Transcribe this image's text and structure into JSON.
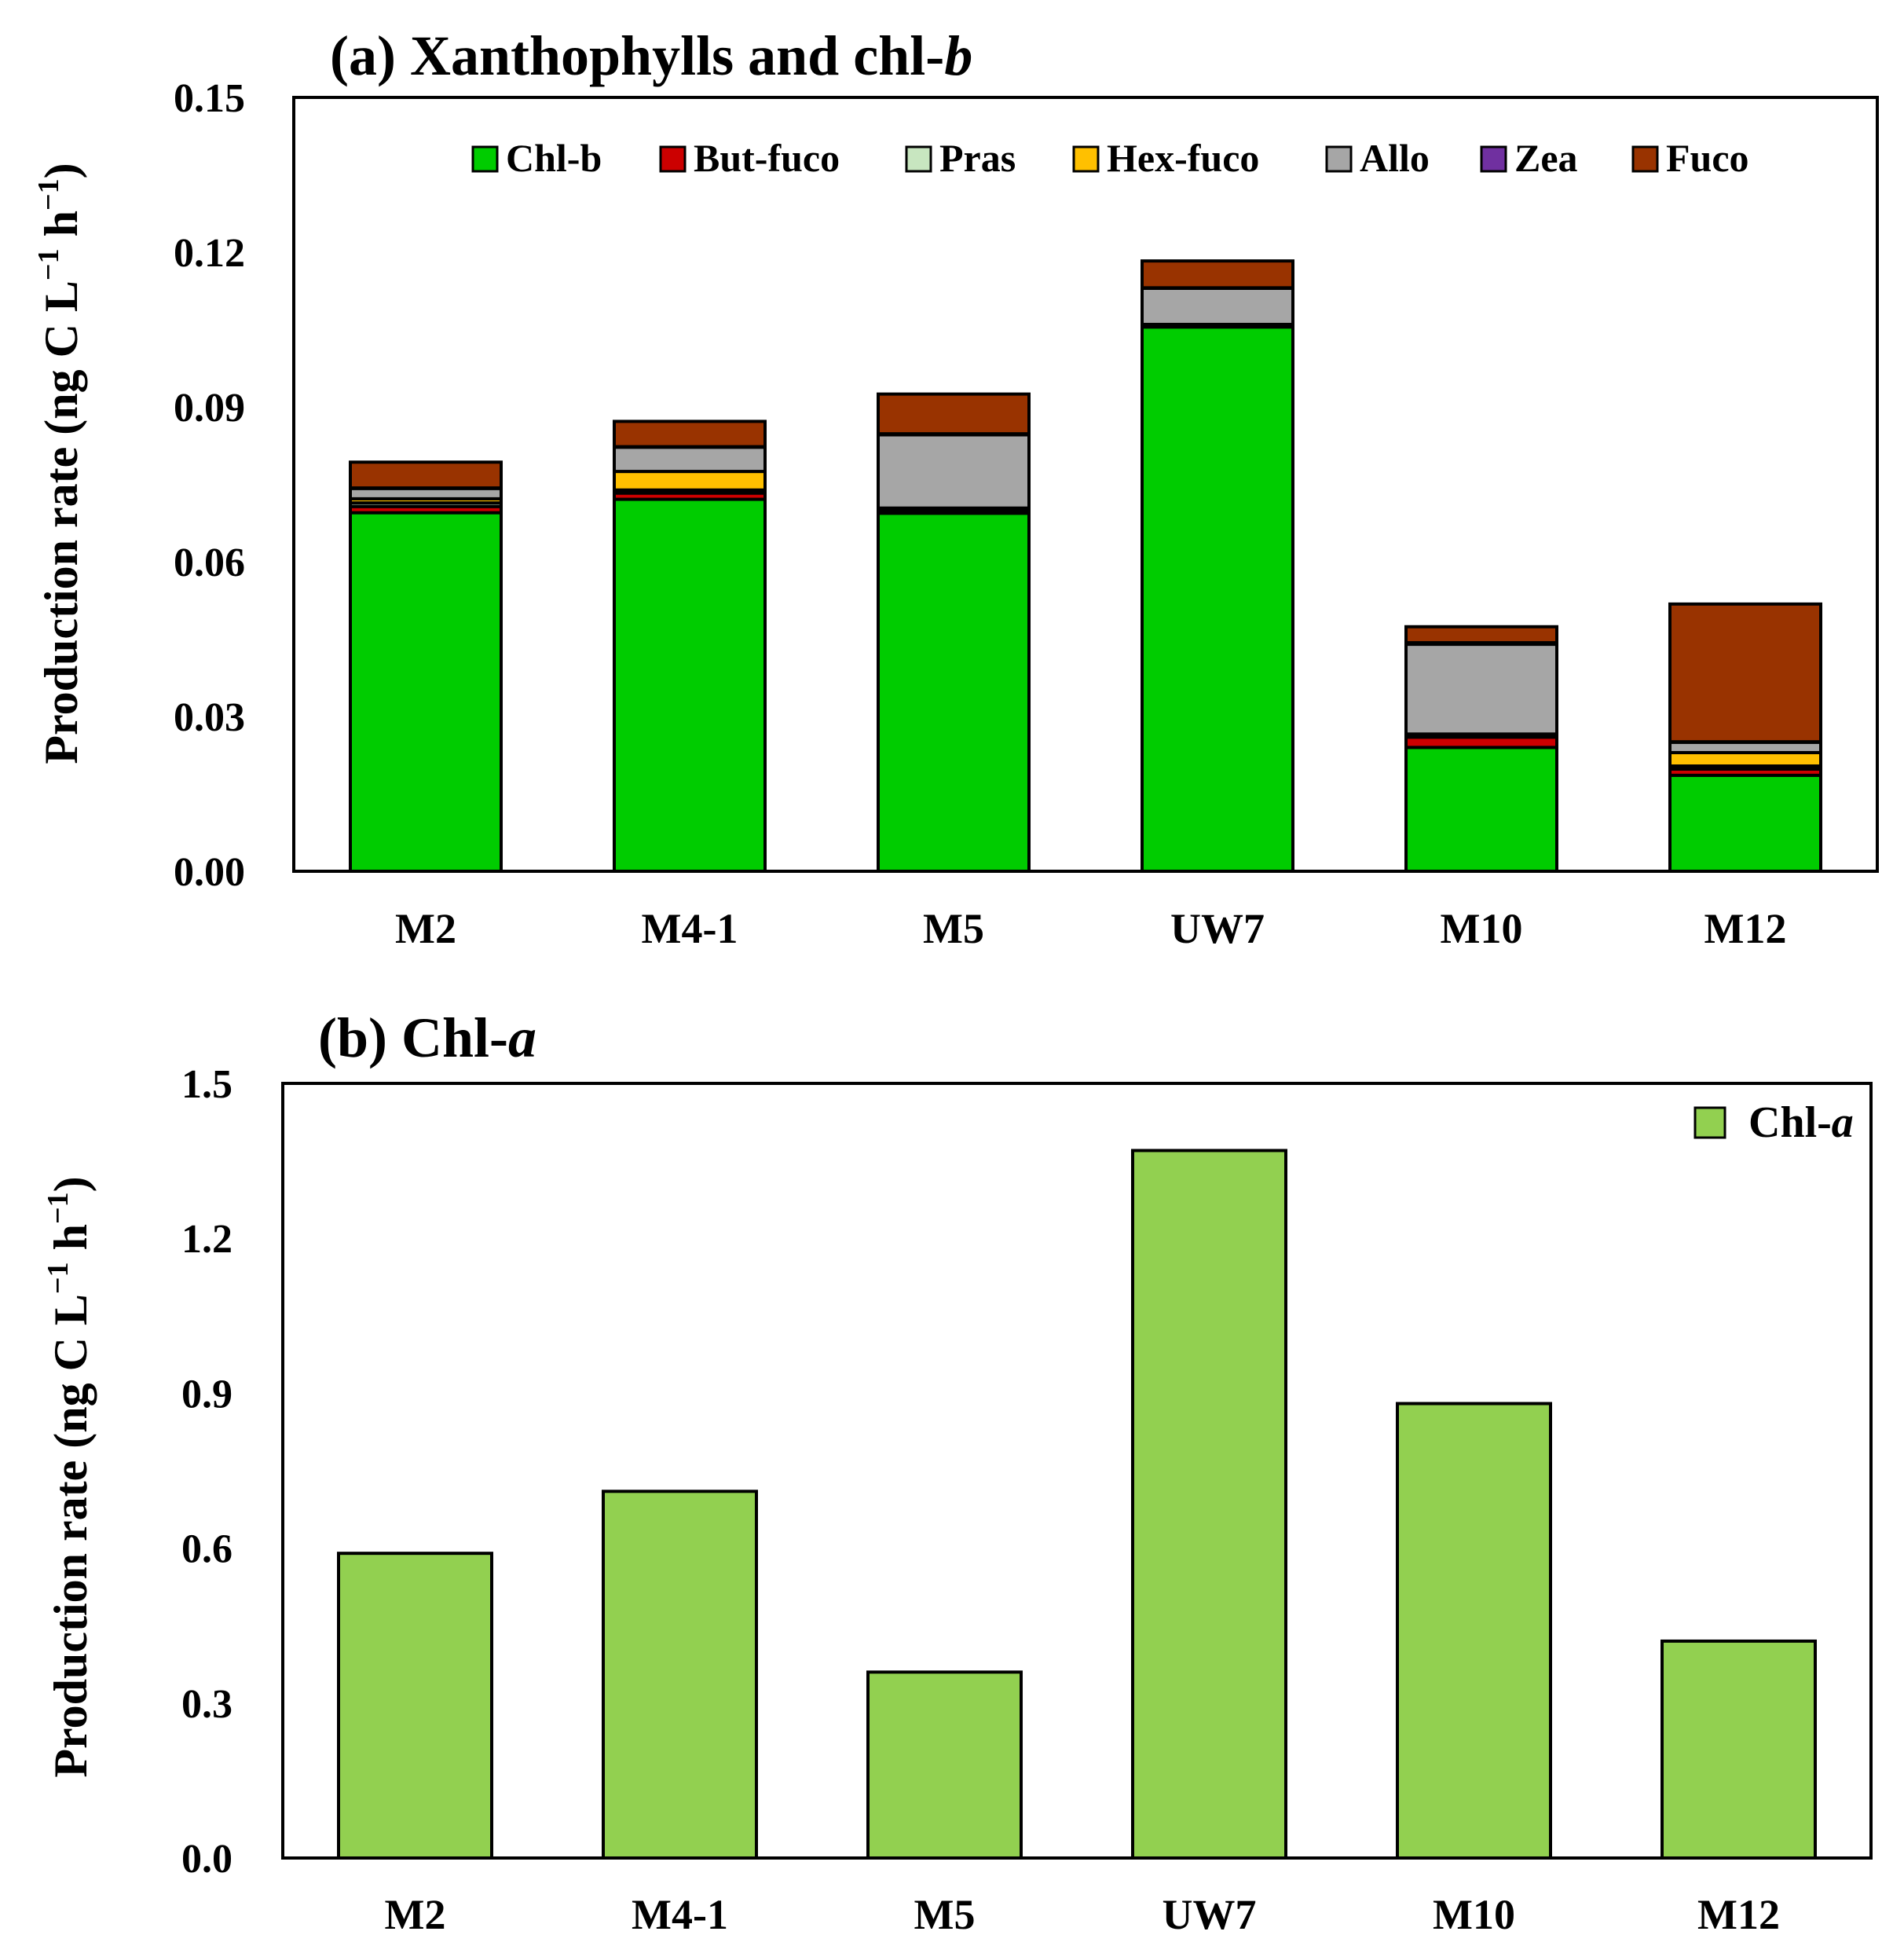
{
  "chart_data": [
    {
      "type": "bar",
      "stacked": true,
      "title": "(a) Xanthophylls and chl-",
      "title_italic": "b",
      "ylabel": "Production rate (ng C L",
      "ylabel_sup1": "−1",
      "ylabel_mid": " h",
      "ylabel_sup2": "−1",
      "ylabel_end": ")",
      "ylim": [
        0,
        0.15
      ],
      "yticks": [
        "0.00",
        "0.03",
        "0.06",
        "0.09",
        "0.12",
        "0.15"
      ],
      "categories": [
        "M2",
        "M4-1",
        "M5",
        "UW7",
        "M10",
        "M12"
      ],
      "legend_position": "top",
      "series": [
        {
          "name": "Chl-b",
          "color": "#00cc00",
          "values": [
            0.0695,
            0.0721,
            0.0694,
            0.1055,
            0.024,
            0.0186
          ]
        },
        {
          "name": "But-fuco",
          "color": "#cc0000",
          "values": [
            0.0012,
            0.0012,
            0.0004,
            0.0002,
            0.002,
            0.0012
          ]
        },
        {
          "name": "Pras",
          "color": "#c8e6c0",
          "values": [
            0.0007,
            0.0006,
            0.0003,
            0.0001,
            0.0003,
            0.0006
          ]
        },
        {
          "name": "Hex-fuco",
          "color": "#ffc000",
          "values": [
            0.0008,
            0.0036,
            0.0003,
            0.0002,
            0.0003,
            0.0026
          ]
        },
        {
          "name": "Allo",
          "color": "#a6a6a6",
          "values": [
            0.002,
            0.0047,
            0.0142,
            0.007,
            0.0174,
            0.002
          ]
        },
        {
          "name": "Zea",
          "color": "#7030a0",
          "values": [
            0.0001,
            0.0001,
            0.0002,
            0.0001,
            0.0003,
            0.0001
          ]
        },
        {
          "name": "Fuco",
          "color": "#993300",
          "values": [
            0.005,
            0.0049,
            0.0077,
            0.0052,
            0.0031,
            0.0267
          ]
        }
      ]
    },
    {
      "type": "bar",
      "stacked": false,
      "title": "(b) Chl-",
      "title_italic": "a",
      "ylabel": "Production rate (ng C L",
      "ylabel_sup1": "−1",
      "ylabel_mid": " h",
      "ylabel_sup2": "−1",
      "ylabel_end": ")",
      "ylim": [
        0,
        1.5
      ],
      "yticks": [
        "0.0",
        "0.3",
        "0.6",
        "0.9",
        "1.2",
        "1.5"
      ],
      "categories": [
        "M2",
        "M4-1",
        "M5",
        "UW7",
        "M10",
        "M12"
      ],
      "legend_position": "top-right",
      "series": [
        {
          "name": "Chl-",
          "name_italic": "a",
          "color": "#92d050",
          "values": [
            0.59,
            0.71,
            0.36,
            1.37,
            0.88,
            0.42
          ]
        }
      ]
    }
  ]
}
